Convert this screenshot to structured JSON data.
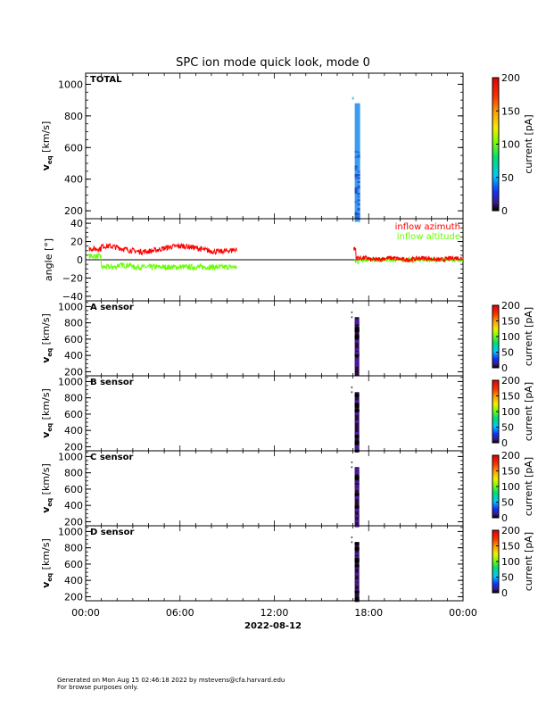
{
  "title": "SPC ion mode quick look, mode 0",
  "date_label": "2022-08-12",
  "x_ticks": [
    "00:00",
    "06:00",
    "12:00",
    "18:00",
    "00:00"
  ],
  "footer": {
    "line1": "Generated on Mon Aug 15 02:46:18 2022 by mstevens@cfa.harvard.edu",
    "line2": "For browse purposes only."
  },
  "colors": {
    "azimuth": "#ff0000",
    "altitude": "#66ff00",
    "total_bar": "#3b9cf0",
    "sensor_bar": "#2a0a3e"
  },
  "chart_data": [
    {
      "type": "heatmap",
      "panel": "TOTAL",
      "label": "TOTAL",
      "ylabel": "v",
      "ylabel_sub": "eq",
      "ylabel_unit": "[km/s]",
      "ylim": [
        150,
        1070
      ],
      "yticks": [
        "200",
        "400",
        "600",
        "800",
        "1000"
      ],
      "xlim_hours": [
        0,
        24
      ],
      "data_time_hours": 17.05,
      "data_vrange": [
        130,
        880
      ],
      "colorbar": {
        "label": "current [pA]",
        "ticks": [
          "0",
          "50",
          "100",
          "150",
          "200"
        ],
        "range": [
          0,
          200
        ]
      }
    },
    {
      "type": "line",
      "panel": "angle",
      "ylabel": "angle [°]",
      "ylim": [
        -45,
        45
      ],
      "yticks": [
        "40",
        "20",
        "0",
        "−20",
        "−40"
      ],
      "xlim_hours": [
        0,
        24
      ],
      "series": [
        {
          "name": "inflow azimuth",
          "color": "#ff0000"
        },
        {
          "name": "inflow altitude",
          "color": "#66ff00"
        }
      ]
    },
    {
      "type": "heatmap",
      "panel": "A",
      "label": "A sensor",
      "ylabel": "v",
      "ylabel_sub": "eq",
      "ylabel_unit": "[km/s]",
      "ylim": [
        150,
        1070
      ],
      "yticks": [
        "200",
        "400",
        "600",
        "800",
        "1000"
      ],
      "colorbar": {
        "label": "current [pA]",
        "ticks": [
          "0",
          "50",
          "100",
          "150",
          "200"
        ],
        "range": [
          0,
          200
        ]
      }
    },
    {
      "type": "heatmap",
      "panel": "B",
      "label": "B sensor",
      "ylabel": "v",
      "ylabel_sub": "eq",
      "ylabel_unit": "[km/s]",
      "ylim": [
        150,
        1070
      ],
      "yticks": [
        "200",
        "400",
        "600",
        "800",
        "1000"
      ],
      "colorbar": {
        "label": "current [pA]",
        "ticks": [
          "0",
          "50",
          "100",
          "150",
          "200"
        ],
        "range": [
          0,
          200
        ]
      }
    },
    {
      "type": "heatmap",
      "panel": "C",
      "label": "C sensor",
      "ylabel": "v",
      "ylabel_sub": "eq",
      "ylabel_unit": "[km/s]",
      "ylim": [
        150,
        1070
      ],
      "yticks": [
        "200",
        "400",
        "600",
        "800",
        "1000"
      ],
      "colorbar": {
        "label": "current [pA]",
        "ticks": [
          "0",
          "50",
          "100",
          "150",
          "200"
        ],
        "range": [
          0,
          200
        ]
      }
    },
    {
      "type": "heatmap",
      "panel": "D",
      "label": "D sensor",
      "ylabel": "v",
      "ylabel_sub": "eq",
      "ylabel_unit": "[km/s]",
      "ylim": [
        150,
        1070
      ],
      "yticks": [
        "200",
        "400",
        "600",
        "800",
        "1000"
      ],
      "colorbar": {
        "label": "current [pA]",
        "ticks": [
          "0",
          "50",
          "100",
          "150",
          "200"
        ],
        "range": [
          0,
          200
        ]
      }
    }
  ]
}
